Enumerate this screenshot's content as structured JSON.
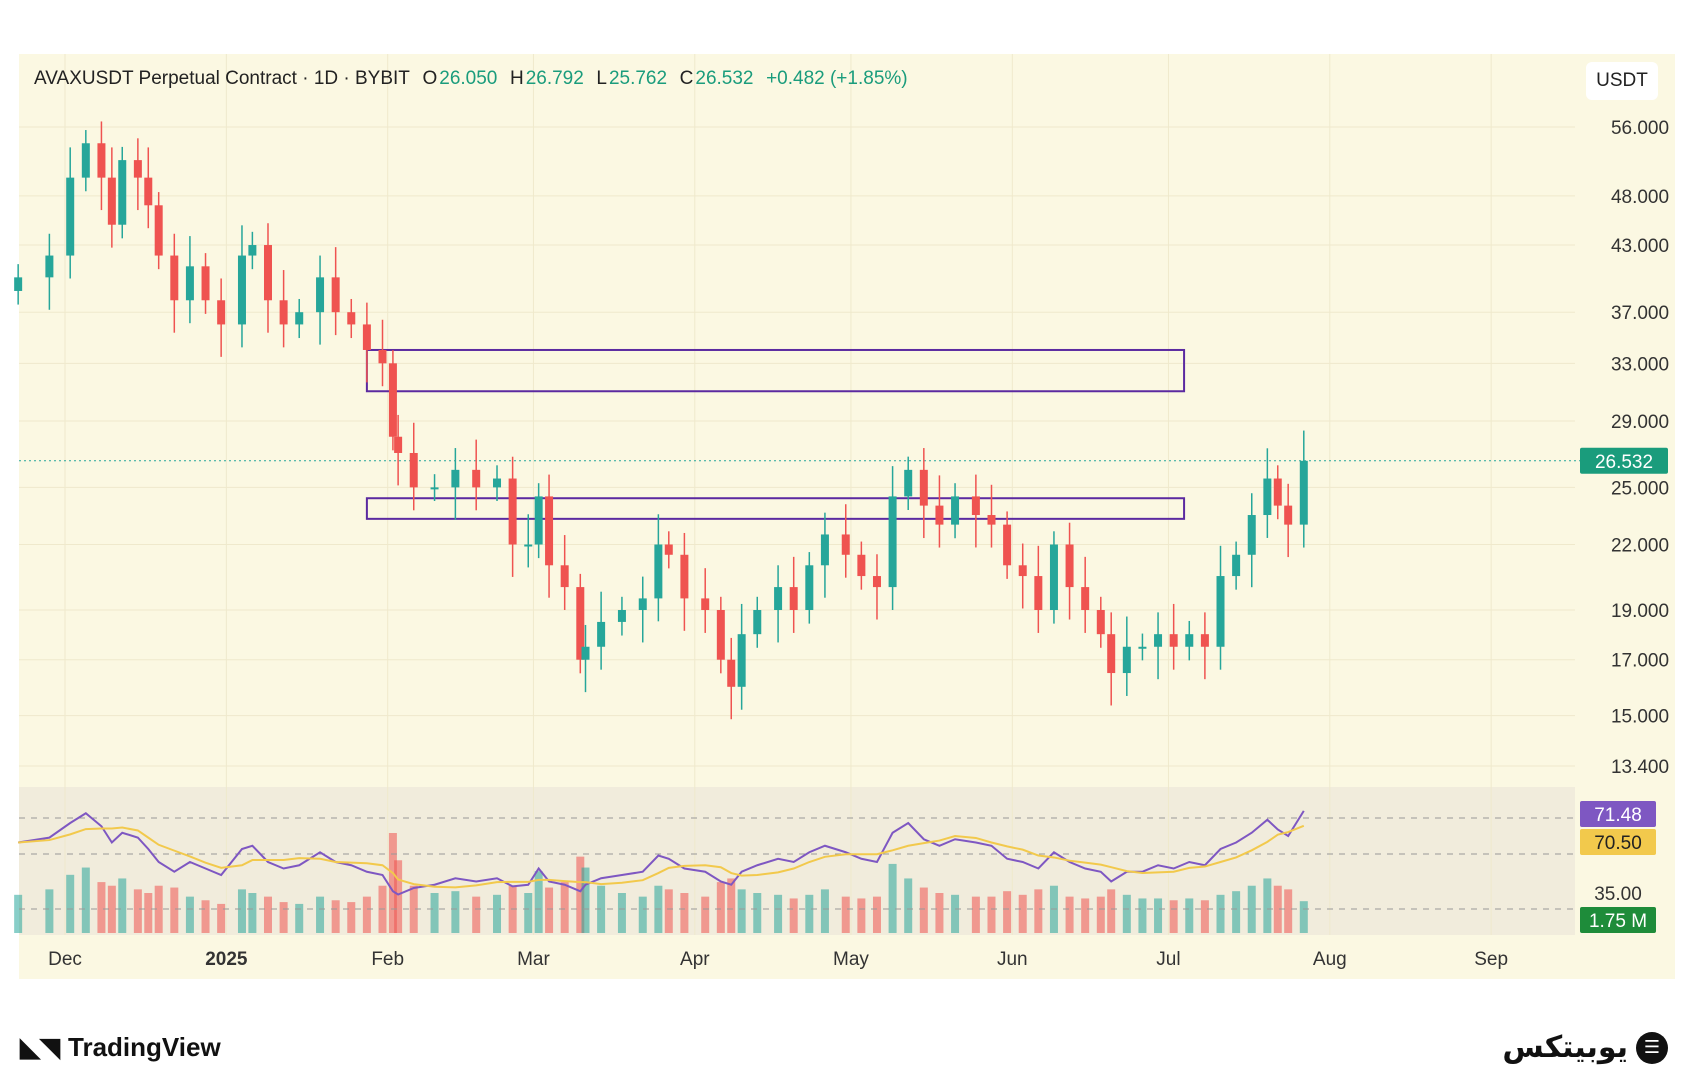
{
  "header": {
    "symbol": "AVAXUSDT Perpetual Contract · 1D · BYBIT",
    "o_label": "O",
    "o": "26.050",
    "h_label": "H",
    "h": "26.792",
    "l_label": "L",
    "l": "25.762",
    "c_label": "C",
    "c": "26.532",
    "change": "+0.482 (+1.85%)",
    "currency": "USDT"
  },
  "colors": {
    "up": "#26a69a",
    "down": "#ef5350",
    "rsi": "#7e57c2",
    "rsi_ma": "#f2c94c",
    "zone": "#5b2aa0",
    "bg": "#fbf8e2"
  },
  "chart_data": {
    "type": "candlestick",
    "title": "AVAXUSDT Perpetual Contract · 1D · BYBIT",
    "y_scale": "log",
    "ylim": [
      12.8,
      60
    ],
    "y_ticks": [
      "56.000",
      "48.000",
      "43.000",
      "37.000",
      "33.000",
      "29.000",
      "25.000",
      "22.000",
      "19.000",
      "17.000",
      "15.000",
      "13.400"
    ],
    "y_tick_values": [
      56,
      48,
      43,
      37,
      33,
      29,
      25,
      22,
      19,
      17,
      15,
      13.4
    ],
    "x_ticks": [
      {
        "label": "Dec",
        "day": 0
      },
      {
        "label": "2025",
        "day": 31
      },
      {
        "label": "Feb",
        "day": 62
      },
      {
        "label": "Mar",
        "day": 90
      },
      {
        "label": "Apr",
        "day": 121
      },
      {
        "label": "May",
        "day": 151
      },
      {
        "label": "Jun",
        "day": 182
      },
      {
        "label": "Jul",
        "day": 212
      },
      {
        "label": "Aug",
        "day": 243
      },
      {
        "label": "Sep",
        "day": 274
      }
    ],
    "days": [
      -9,
      -3,
      1,
      4,
      7,
      9,
      11,
      14,
      16,
      18,
      21,
      24,
      27,
      30,
      34,
      36,
      39,
      42,
      45,
      49,
      52,
      55,
      58,
      61,
      63,
      64,
      67,
      71,
      75,
      79,
      83,
      86,
      89,
      91,
      93,
      96,
      99,
      100,
      103,
      107,
      111,
      114,
      116,
      119,
      123,
      126,
      128,
      130,
      133,
      137,
      140,
      143,
      146,
      150,
      153,
      156,
      159,
      162,
      165,
      168,
      171,
      175,
      178,
      181,
      184,
      187,
      190,
      193,
      196,
      199,
      201,
      204,
      207,
      210,
      213,
      216,
      219,
      222,
      225,
      228,
      231,
      233,
      235,
      238
    ],
    "close": [
      40,
      42,
      50,
      54,
      50,
      45,
      52,
      50,
      47,
      42,
      38,
      41,
      38,
      36,
      42,
      43,
      38,
      36,
      37,
      40,
      37,
      36,
      34,
      33,
      28,
      27,
      25,
      25,
      26,
      25,
      25.5,
      22,
      22,
      24.5,
      21,
      20,
      17,
      17.5,
      18.5,
      19,
      19.5,
      22,
      21.5,
      19.5,
      19,
      17,
      16,
      18,
      19,
      20,
      19,
      21,
      22.5,
      21.5,
      20.5,
      20,
      24.5,
      26,
      24,
      23,
      24.5,
      23.5,
      23,
      21,
      20.5,
      19,
      22,
      20,
      19,
      18,
      16.5,
      17.5,
      17.5,
      18,
      17.5,
      18,
      17.5,
      20.5,
      21.5,
      23.5,
      25.5,
      24,
      23,
      26.532
    ],
    "volume_m": [
      2.1,
      2.4,
      3.2,
      3.6,
      2.8,
      2.6,
      3,
      2.4,
      2.2,
      2.6,
      2.5,
      2,
      1.8,
      1.6,
      2.4,
      2.2,
      2,
      1.7,
      1.6,
      2,
      1.8,
      1.7,
      2,
      2.6,
      5.5,
      4,
      2.6,
      2.2,
      2.3,
      2,
      2.1,
      2.6,
      2.2,
      3.4,
      2.5,
      2.8,
      4.2,
      3.6,
      2.6,
      2.2,
      2,
      2.6,
      2.4,
      2.2,
      2,
      2.8,
      3,
      2.4,
      2.2,
      2.1,
      1.9,
      2.1,
      2.4,
      2,
      1.9,
      2,
      3.8,
      3,
      2.5,
      2.2,
      2.1,
      2,
      2,
      2.3,
      2.1,
      2.4,
      2.6,
      2,
      1.9,
      2,
      2.4,
      2.1,
      1.9,
      1.9,
      1.8,
      1.9,
      1.8,
      2.1,
      2.3,
      2.6,
      3,
      2.6,
      2.4,
      1.75
    ],
    "rsi": [
      52,
      55,
      64,
      70,
      62,
      52,
      58,
      55,
      48,
      40,
      34,
      40,
      36,
      32,
      48,
      50,
      40,
      36,
      38,
      46,
      40,
      38,
      34,
      32,
      22,
      20,
      24,
      26,
      30,
      28,
      30,
      25,
      26,
      36,
      28,
      26,
      22,
      26,
      30,
      32,
      34,
      44,
      42,
      36,
      34,
      28,
      26,
      34,
      38,
      42,
      40,
      46,
      50,
      46,
      42,
      40,
      58,
      64,
      54,
      50,
      54,
      52,
      50,
      42,
      40,
      36,
      46,
      40,
      36,
      34,
      28,
      34,
      34,
      38,
      36,
      40,
      38,
      48,
      52,
      58,
      66,
      60,
      56,
      71.48
    ],
    "rsi_ma_last": 70.5,
    "zones": [
      {
        "from_day": 58,
        "to_day": 215,
        "low": 31,
        "high": 34
      },
      {
        "from_day": 58,
        "to_day": 215,
        "low": 23.3,
        "high": 24.4
      }
    ],
    "last_price": "26.532",
    "indicator_labels": {
      "rsi": "71.48",
      "rsi_ma": "70.50",
      "level": "35.00",
      "volume": "1.75 M"
    }
  },
  "footer": {
    "tradingview": "TradingView",
    "brand": "یوبیتکس"
  }
}
